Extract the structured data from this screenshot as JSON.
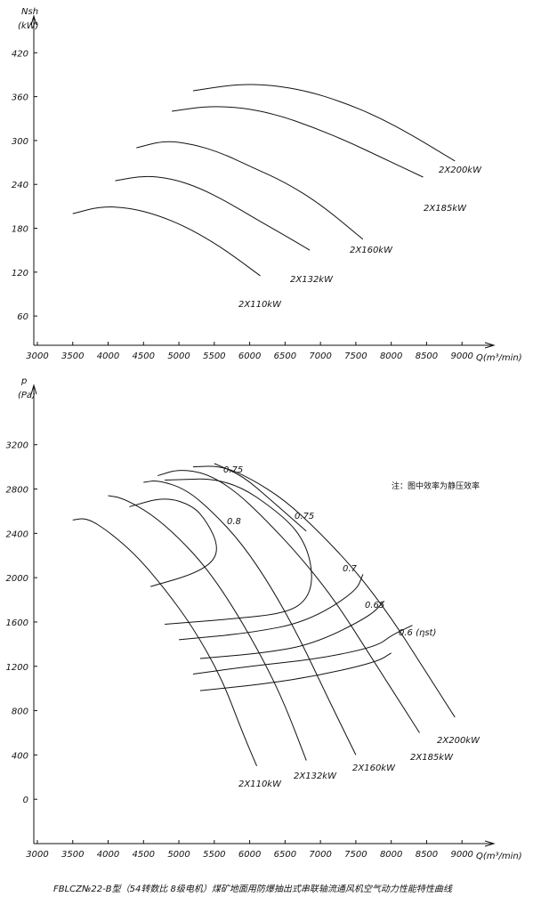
{
  "caption": "FBLCZ№22-B型（54转数比 8级电机）煤矿地面用防爆抽出式串联轴流通风机空气动力性能特性曲线",
  "chart_data": [
    {
      "type": "line",
      "ylabel": "Nsh",
      "yunit": "(kW)",
      "xlabel": "Q(m³/min)",
      "xticks": [
        3000,
        3500,
        4000,
        4500,
        5000,
        5500,
        6000,
        6500,
        7000,
        7500,
        8000,
        8500,
        9000
      ],
      "yticks": [
        60,
        120,
        180,
        240,
        300,
        360,
        420
      ],
      "xlim": [
        2950,
        9450
      ],
      "ylim": [
        20,
        480
      ],
      "series": [
        {
          "name": "2X110kW",
          "x": [
            3500,
            3900,
            4300,
            4700,
            5100,
            5500,
            5800,
            6150
          ],
          "y": [
            200,
            210,
            208,
            198,
            182,
            160,
            140,
            115
          ]
        },
        {
          "name": "2X132kW",
          "x": [
            4100,
            4500,
            4900,
            5300,
            5700,
            6100,
            6500,
            6850
          ],
          "y": [
            245,
            252,
            248,
            235,
            215,
            192,
            170,
            150
          ]
        },
        {
          "name": "2X160kW",
          "x": [
            4400,
            4800,
            5200,
            5600,
            6000,
            6500,
            7000,
            7600
          ],
          "y": [
            290,
            300,
            295,
            283,
            265,
            243,
            213,
            165
          ]
        },
        {
          "name": "2X185kW",
          "x": [
            4900,
            5400,
            5900,
            6400,
            6900,
            7400,
            7900,
            8450
          ],
          "y": [
            340,
            347,
            345,
            335,
            318,
            298,
            275,
            250
          ]
        },
        {
          "name": "2X200kW",
          "x": [
            5200,
            5800,
            6300,
            6800,
            7300,
            7800,
            8300,
            8900
          ],
          "y": [
            368,
            377,
            376,
            368,
            353,
            333,
            307,
            272
          ]
        }
      ]
    },
    {
      "type": "line",
      "ylabel": "p",
      "yunit": "(Pa)",
      "xlabel": "Q(m³/min)",
      "note": "注：图中效率为静压效率",
      "xticks": [
        3000,
        3500,
        4000,
        4500,
        5000,
        5500,
        6000,
        6500,
        7000,
        7500,
        8000,
        8500,
        9000
      ],
      "yticks": [
        0,
        400,
        800,
        1200,
        1600,
        2000,
        2400,
        2800,
        3200
      ],
      "xlim": [
        2950,
        9450
      ],
      "ylim": [
        -400,
        3800
      ],
      "series": [
        {
          "name": "2X110kW",
          "x": [
            3500,
            3700,
            4000,
            4400,
            4800,
            5200,
            5600,
            5900,
            6100
          ],
          "y": [
            2520,
            2540,
            2420,
            2200,
            1900,
            1550,
            1100,
            600,
            300
          ]
        },
        {
          "name": "2X132kW",
          "x": [
            4000,
            4200,
            4600,
            5000,
            5400,
            5800,
            6200,
            6500,
            6800
          ],
          "y": [
            2740,
            2720,
            2580,
            2360,
            2080,
            1700,
            1250,
            850,
            350
          ]
        },
        {
          "name": "2X160kW",
          "x": [
            4500,
            4700,
            5100,
            5500,
            5900,
            6300,
            6700,
            7100,
            7500
          ],
          "y": [
            2860,
            2880,
            2800,
            2580,
            2300,
            1920,
            1460,
            920,
            400
          ]
        },
        {
          "name": "2X185kW",
          "x": [
            4700,
            5000,
            5400,
            5800,
            6200,
            6700,
            7200,
            7700,
            8200,
            8400
          ],
          "y": [
            2920,
            2980,
            2940,
            2780,
            2540,
            2200,
            1800,
            1300,
            800,
            600
          ]
        },
        {
          "name": "2X200kW",
          "x": [
            5200,
            5600,
            6000,
            6500,
            7000,
            7500,
            8000,
            8500,
            8900
          ],
          "y": [
            3000,
            3010,
            2900,
            2700,
            2400,
            2060,
            1640,
            1140,
            740
          ]
        },
        {
          "name": "0.75",
          "x": [
            5500,
            5900,
            6300,
            6800
          ],
          "y": [
            3030,
            2920,
            2700,
            2420
          ]
        },
        {
          "name": "0.8",
          "x": [
            4300,
            4800,
            5200,
            5400,
            5550,
            5500,
            5200,
            4600
          ],
          "y": [
            2640,
            2730,
            2650,
            2500,
            2300,
            2150,
            2030,
            1920
          ]
        },
        {
          "name": "0.75",
          "x": [
            4800,
            5700,
            6500,
            6800,
            6900,
            6800,
            6500,
            5800,
            4800
          ],
          "y": [
            2880,
            2900,
            2550,
            2300,
            2000,
            1790,
            1680,
            1630,
            1580
          ]
        },
        {
          "name": "0.7",
          "x": [
            5000,
            6000,
            6800,
            7500,
            7600
          ],
          "y": [
            1440,
            1500,
            1600,
            1870,
            2030
          ]
        },
        {
          "name": "0.65",
          "x": [
            5300,
            6200,
            6900,
            7700,
            7900
          ],
          "y": [
            1270,
            1320,
            1400,
            1650,
            1790
          ]
        },
        {
          "name": "0.6 (ηst)",
          "x": [
            5200,
            6000,
            7000,
            7800,
            8000,
            8300
          ],
          "y": [
            1130,
            1200,
            1270,
            1380,
            1480,
            1570
          ]
        },
        {
          "name": "",
          "x": [
            5300,
            6200,
            7000,
            7800,
            8000
          ],
          "y": [
            980,
            1040,
            1120,
            1240,
            1320
          ]
        }
      ]
    }
  ]
}
